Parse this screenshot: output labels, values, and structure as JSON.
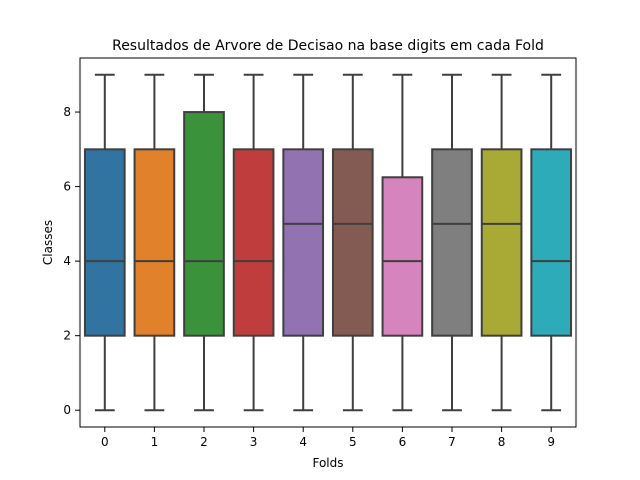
{
  "chart_data": {
    "type": "box",
    "title": "Resultados de Arvore de Decisao na base digits em cada Fold",
    "xlabel": "Folds",
    "ylabel": "Classes",
    "categories": [
      "0",
      "1",
      "2",
      "3",
      "4",
      "5",
      "6",
      "7",
      "8",
      "9"
    ],
    "yticks": [
      "0",
      "2",
      "4",
      "6",
      "8"
    ],
    "ylim": [
      -0.45,
      9.45
    ],
    "grid": false,
    "boxes": [
      {
        "category": "0",
        "whisker_low": 0,
        "q1": 2,
        "median": 4,
        "q3": 7,
        "whisker_high": 9,
        "color": "#3274a1"
      },
      {
        "category": "1",
        "whisker_low": 0,
        "q1": 2,
        "median": 4,
        "q3": 7,
        "whisker_high": 9,
        "color": "#e1812c"
      },
      {
        "category": "2",
        "whisker_low": 0,
        "q1": 2,
        "median": 4,
        "q3": 8,
        "whisker_high": 9,
        "color": "#3a923a"
      },
      {
        "category": "3",
        "whisker_low": 0,
        "q1": 2,
        "median": 4,
        "q3": 7,
        "whisker_high": 9,
        "color": "#c03d3e"
      },
      {
        "category": "4",
        "whisker_low": 0,
        "q1": 2,
        "median": 5,
        "q3": 7,
        "whisker_high": 9,
        "color": "#9372b2"
      },
      {
        "category": "5",
        "whisker_low": 0,
        "q1": 2,
        "median": 5,
        "q3": 7,
        "whisker_high": 9,
        "color": "#845b53"
      },
      {
        "category": "6",
        "whisker_low": 0,
        "q1": 2,
        "median": 4,
        "q3": 6.25,
        "whisker_high": 9,
        "color": "#d684bd"
      },
      {
        "category": "7",
        "whisker_low": 0,
        "q1": 2,
        "median": 5,
        "q3": 7,
        "whisker_high": 9,
        "color": "#7f7f7f"
      },
      {
        "category": "8",
        "whisker_low": 0,
        "q1": 2,
        "median": 5,
        "q3": 7,
        "whisker_high": 9,
        "color": "#a9aa35"
      },
      {
        "category": "9",
        "whisker_low": 0,
        "q1": 2,
        "median": 4,
        "q3": 7,
        "whisker_high": 9,
        "color": "#2eabb8"
      }
    ],
    "line_color": "#3f3f3f"
  }
}
